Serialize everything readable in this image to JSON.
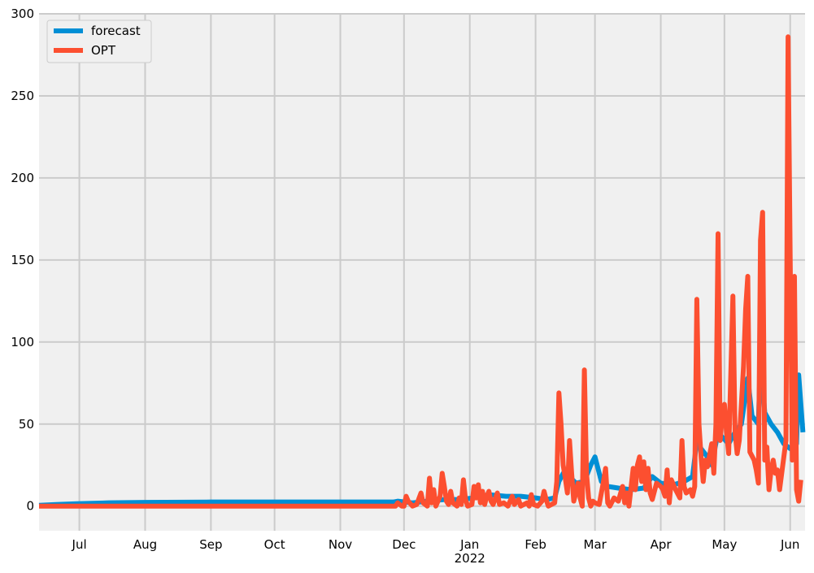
{
  "chart_data": {
    "type": "line",
    "title": "",
    "xlabel": "",
    "ylabel": "",
    "x_tick_labels": [
      "Jul",
      "Aug",
      "Sep",
      "Oct",
      "Nov",
      "Dec",
      "Jan",
      "Feb",
      "Mar",
      "Apr",
      "May",
      "Jun"
    ],
    "x_tick_dates": [
      "2021-07-01",
      "2021-08-01",
      "2021-09-01",
      "2021-10-01",
      "2021-11-01",
      "2021-12-01",
      "2022-01-01",
      "2022-02-01",
      "2022-03-01",
      "2022-04-01",
      "2022-05-01",
      "2022-06-01"
    ],
    "x_tick_sublabel": "2022",
    "xlim": [
      "2021-06-12",
      "2022-06-08"
    ],
    "ylim": [
      -15,
      300
    ],
    "y_ticks": [
      0,
      50,
      100,
      150,
      200,
      250,
      300
    ],
    "grid": true,
    "legend_position": "top-left",
    "style": {
      "background": "#f0f0f0",
      "grid": "#cbcbcb"
    },
    "series": [
      {
        "name": "forecast",
        "color": "#008fd5",
        "points": [
          [
            "2021-06-12",
            0.5
          ],
          [
            "2021-06-20",
            1.0
          ],
          [
            "2021-06-30",
            1.5
          ],
          [
            "2021-07-15",
            2.0
          ],
          [
            "2021-08-01",
            2.3
          ],
          [
            "2021-09-01",
            2.5
          ],
          [
            "2021-10-01",
            2.5
          ],
          [
            "2021-11-01",
            2.5
          ],
          [
            "2021-11-26",
            2.5
          ],
          [
            "2021-11-28",
            3
          ],
          [
            "2021-12-05",
            2
          ],
          [
            "2021-12-12",
            3
          ],
          [
            "2021-12-20",
            4
          ],
          [
            "2021-12-27",
            4
          ],
          [
            "2022-01-03",
            5
          ],
          [
            "2022-01-10",
            7
          ],
          [
            "2022-01-18",
            6
          ],
          [
            "2022-01-25",
            6
          ],
          [
            "2022-02-01",
            5
          ],
          [
            "2022-02-06",
            4
          ],
          [
            "2022-02-10",
            5
          ],
          [
            "2022-02-12",
            15
          ],
          [
            "2022-02-14",
            20
          ],
          [
            "2022-02-17",
            18
          ],
          [
            "2022-02-20",
            14
          ],
          [
            "2022-02-24",
            15
          ],
          [
            "2022-02-27",
            25
          ],
          [
            "2022-03-01",
            30
          ],
          [
            "2022-03-04",
            15
          ],
          [
            "2022-03-07",
            12
          ],
          [
            "2022-03-12",
            11
          ],
          [
            "2022-03-18",
            10
          ],
          [
            "2022-03-24",
            11
          ],
          [
            "2022-03-28",
            18
          ],
          [
            "2022-04-01",
            14
          ],
          [
            "2022-04-07",
            13
          ],
          [
            "2022-04-12",
            15
          ],
          [
            "2022-04-16",
            18
          ],
          [
            "2022-04-18",
            40
          ],
          [
            "2022-04-20",
            35
          ],
          [
            "2022-04-23",
            30
          ],
          [
            "2022-04-25",
            25
          ],
          [
            "2022-04-28",
            45
          ],
          [
            "2022-04-30",
            42
          ],
          [
            "2022-05-03",
            38
          ],
          [
            "2022-05-06",
            45
          ],
          [
            "2022-05-09",
            50
          ],
          [
            "2022-05-12",
            78
          ],
          [
            "2022-05-14",
            55
          ],
          [
            "2022-05-17",
            50
          ],
          [
            "2022-05-18",
            92
          ],
          [
            "2022-05-20",
            57
          ],
          [
            "2022-05-23",
            50
          ],
          [
            "2022-05-26",
            45
          ],
          [
            "2022-05-29",
            38
          ],
          [
            "2022-06-01",
            35
          ],
          [
            "2022-06-04",
            38
          ],
          [
            "2022-06-05",
            80
          ],
          [
            "2022-06-07",
            45
          ]
        ]
      },
      {
        "name": "OPT",
        "color": "#fc4f30",
        "points": [
          [
            "2021-06-12",
            0
          ],
          [
            "2021-11-27",
            0
          ],
          [
            "2021-11-28",
            2
          ],
          [
            "2021-11-29",
            1
          ],
          [
            "2021-11-30",
            0
          ],
          [
            "2021-12-01",
            0
          ],
          [
            "2021-12-02",
            6
          ],
          [
            "2021-12-03",
            3
          ],
          [
            "2021-12-05",
            0
          ],
          [
            "2021-12-07",
            1
          ],
          [
            "2021-12-09",
            8
          ],
          [
            "2021-12-10",
            2
          ],
          [
            "2021-12-12",
            0
          ],
          [
            "2021-12-13",
            17
          ],
          [
            "2021-12-14",
            2
          ],
          [
            "2021-12-15",
            10
          ],
          [
            "2021-12-16",
            0
          ],
          [
            "2021-12-18",
            6
          ],
          [
            "2021-12-19",
            20
          ],
          [
            "2021-12-20",
            12
          ],
          [
            "2021-12-21",
            3
          ],
          [
            "2021-12-22",
            1
          ],
          [
            "2021-12-23",
            9
          ],
          [
            "2021-12-24",
            2
          ],
          [
            "2021-12-26",
            0
          ],
          [
            "2021-12-27",
            5
          ],
          [
            "2021-12-28",
            1
          ],
          [
            "2021-12-29",
            16
          ],
          [
            "2021-12-30",
            4
          ],
          [
            "2021-12-31",
            0
          ],
          [
            "2022-01-02",
            1
          ],
          [
            "2022-01-03",
            12
          ],
          [
            "2022-01-04",
            5
          ],
          [
            "2022-01-05",
            13
          ],
          [
            "2022-01-06",
            2
          ],
          [
            "2022-01-07",
            9
          ],
          [
            "2022-01-08",
            1
          ],
          [
            "2022-01-09",
            6
          ],
          [
            "2022-01-10",
            9
          ],
          [
            "2022-01-11",
            3
          ],
          [
            "2022-01-12",
            1
          ],
          [
            "2022-01-14",
            8
          ],
          [
            "2022-01-15",
            1
          ],
          [
            "2022-01-17",
            2
          ],
          [
            "2022-01-19",
            0
          ],
          [
            "2022-01-21",
            6
          ],
          [
            "2022-01-22",
            1
          ],
          [
            "2022-01-24",
            4
          ],
          [
            "2022-01-25",
            0
          ],
          [
            "2022-01-28",
            2
          ],
          [
            "2022-01-29",
            0
          ],
          [
            "2022-01-30",
            7
          ],
          [
            "2022-01-31",
            1
          ],
          [
            "2022-02-02",
            0
          ],
          [
            "2022-02-04",
            3
          ],
          [
            "2022-02-05",
            9
          ],
          [
            "2022-02-06",
            4
          ],
          [
            "2022-02-07",
            0
          ],
          [
            "2022-02-10",
            2
          ],
          [
            "2022-02-11",
            15
          ],
          [
            "2022-02-12",
            69
          ],
          [
            "2022-02-13",
            50
          ],
          [
            "2022-02-14",
            25
          ],
          [
            "2022-02-15",
            17
          ],
          [
            "2022-02-16",
            8
          ],
          [
            "2022-02-17",
            40
          ],
          [
            "2022-02-18",
            20
          ],
          [
            "2022-02-19",
            3
          ],
          [
            "2022-02-20",
            8
          ],
          [
            "2022-02-21",
            14
          ],
          [
            "2022-02-22",
            5
          ],
          [
            "2022-02-23",
            0
          ],
          [
            "2022-02-24",
            83
          ],
          [
            "2022-02-25",
            20
          ],
          [
            "2022-02-26",
            5
          ],
          [
            "2022-02-27",
            0
          ],
          [
            "2022-02-28",
            3
          ],
          [
            "2022-03-01",
            2
          ],
          [
            "2022-03-03",
            1
          ],
          [
            "2022-03-05",
            15
          ],
          [
            "2022-03-06",
            23
          ],
          [
            "2022-03-07",
            2
          ],
          [
            "2022-03-08",
            0
          ],
          [
            "2022-03-10",
            5
          ],
          [
            "2022-03-12",
            3
          ],
          [
            "2022-03-14",
            12
          ],
          [
            "2022-03-15",
            2
          ],
          [
            "2022-03-16",
            8
          ],
          [
            "2022-03-17",
            0
          ],
          [
            "2022-03-19",
            23
          ],
          [
            "2022-03-20",
            10
          ],
          [
            "2022-03-21",
            25
          ],
          [
            "2022-03-22",
            30
          ],
          [
            "2022-03-23",
            15
          ],
          [
            "2022-03-24",
            27
          ],
          [
            "2022-03-25",
            10
          ],
          [
            "2022-03-26",
            23
          ],
          [
            "2022-03-27",
            8
          ],
          [
            "2022-03-28",
            4
          ],
          [
            "2022-03-30",
            14
          ],
          [
            "2022-04-01",
            12
          ],
          [
            "2022-04-02",
            10
          ],
          [
            "2022-04-03",
            6
          ],
          [
            "2022-04-04",
            22
          ],
          [
            "2022-04-05",
            2
          ],
          [
            "2022-04-06",
            16
          ],
          [
            "2022-04-08",
            10
          ],
          [
            "2022-04-10",
            5
          ],
          [
            "2022-04-11",
            40
          ],
          [
            "2022-04-12",
            12
          ],
          [
            "2022-04-13",
            8
          ],
          [
            "2022-04-15",
            10
          ],
          [
            "2022-04-16",
            6
          ],
          [
            "2022-04-17",
            12
          ],
          [
            "2022-04-18",
            126
          ],
          [
            "2022-04-19",
            50
          ],
          [
            "2022-04-20",
            30
          ],
          [
            "2022-04-21",
            15
          ],
          [
            "2022-04-22",
            28
          ],
          [
            "2022-04-23",
            24
          ],
          [
            "2022-04-25",
            38
          ],
          [
            "2022-04-26",
            20
          ],
          [
            "2022-04-27",
            50
          ],
          [
            "2022-04-28",
            166
          ],
          [
            "2022-04-29",
            40
          ],
          [
            "2022-04-30",
            55
          ],
          [
            "2022-05-01",
            62
          ],
          [
            "2022-05-02",
            45
          ],
          [
            "2022-05-03",
            32
          ],
          [
            "2022-05-05",
            128
          ],
          [
            "2022-05-06",
            45
          ],
          [
            "2022-05-07",
            32
          ],
          [
            "2022-05-08",
            40
          ],
          [
            "2022-05-10",
            85
          ],
          [
            "2022-05-11",
            120
          ],
          [
            "2022-05-12",
            140
          ],
          [
            "2022-05-13",
            33
          ],
          [
            "2022-05-15",
            28
          ],
          [
            "2022-05-16",
            22
          ],
          [
            "2022-05-17",
            14
          ],
          [
            "2022-05-18",
            162
          ],
          [
            "2022-05-19",
            179
          ],
          [
            "2022-05-20",
            28
          ],
          [
            "2022-05-21",
            36
          ],
          [
            "2022-05-22",
            10
          ],
          [
            "2022-05-23",
            22
          ],
          [
            "2022-05-24",
            28
          ],
          [
            "2022-05-25",
            20
          ],
          [
            "2022-05-26",
            22
          ],
          [
            "2022-05-27",
            10
          ],
          [
            "2022-05-28",
            20
          ],
          [
            "2022-05-29",
            30
          ],
          [
            "2022-05-30",
            40
          ],
          [
            "2022-05-31",
            286
          ],
          [
            "2022-06-01",
            150
          ],
          [
            "2022-06-02",
            28
          ],
          [
            "2022-06-03",
            140
          ],
          [
            "2022-06-04",
            10
          ],
          [
            "2022-06-05",
            3
          ],
          [
            "2022-06-06",
            16
          ]
        ]
      }
    ]
  }
}
